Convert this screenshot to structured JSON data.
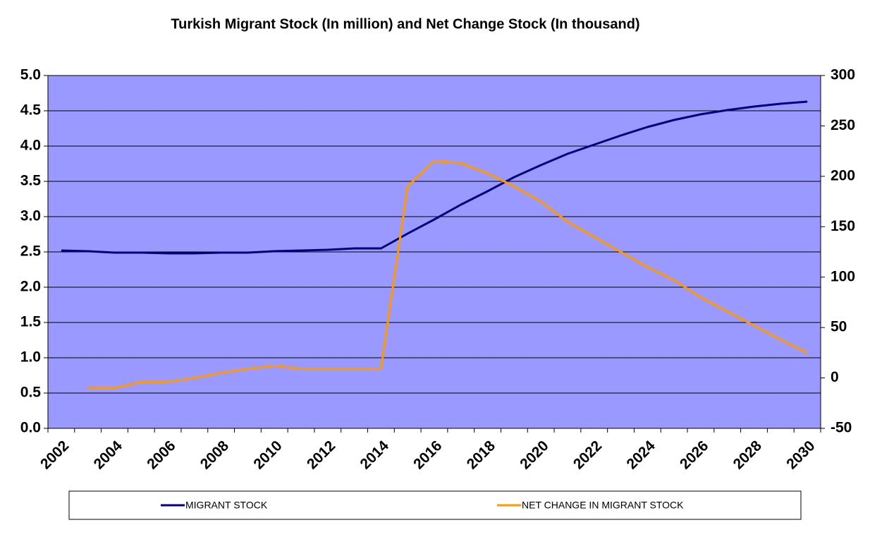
{
  "chart_data": {
    "type": "line",
    "title": "Turkish Migrant Stock (In million) and Net Change Stock (In thousand)",
    "categories": [
      "2002",
      null,
      "2004",
      null,
      "2006",
      null,
      "2008",
      null,
      "2010",
      null,
      "2012",
      null,
      "2014",
      null,
      "2016",
      null,
      "2018",
      null,
      "2020",
      null,
      "2022",
      null,
      "2024",
      null,
      "2026",
      null,
      "2028",
      null,
      "2030"
    ],
    "series": [
      {
        "name": "MIGRANT STOCK",
        "color": "#000080",
        "values": [
          2.52,
          2.51,
          2.49,
          2.49,
          2.48,
          2.48,
          2.49,
          2.49,
          2.51,
          2.52,
          2.53,
          2.55,
          2.55,
          2.76,
          2.96,
          3.17,
          3.36,
          3.56,
          3.73,
          3.89,
          4.02,
          4.15,
          4.27,
          4.37,
          4.45,
          4.51,
          4.56,
          4.6,
          4.63
        ]
      },
      {
        "name": "NET CHANGE IN MIGRANT STOCK",
        "color": "#ff9900",
        "axis": "y2",
        "values": [
          null,
          -10,
          -10,
          -4,
          -4,
          0,
          5,
          9,
          12,
          9,
          9,
          9,
          9,
          190,
          215,
          213,
          203,
          190,
          175,
          155,
          140,
          125,
          110,
          97,
          80,
          66,
          52,
          38,
          25
        ]
      }
    ],
    "ylim": [
      0,
      5
    ],
    "yticks": [
      {
        "value": 0,
        "label": "0.0"
      },
      {
        "value": 0.5,
        "label": "0.5"
      },
      {
        "value": 1,
        "label": "1.0"
      },
      {
        "value": 1.5,
        "label": "1.5"
      },
      {
        "value": 2,
        "label": "2.0"
      },
      {
        "value": 2.5,
        "label": "2.5"
      },
      {
        "value": 3,
        "label": "3.0"
      },
      {
        "value": 3.5,
        "label": "3.5"
      },
      {
        "value": 4,
        "label": "4.0"
      },
      {
        "value": 4.5,
        "label": "4.5"
      },
      {
        "value": 5,
        "label": "5.0"
      }
    ],
    "y2lim": [
      -50,
      300
    ],
    "y2ticks": [
      -50,
      0,
      50,
      100,
      150,
      200,
      250,
      300
    ],
    "grid": true,
    "legend": "bottom",
    "plot_color": "#9999ff"
  }
}
